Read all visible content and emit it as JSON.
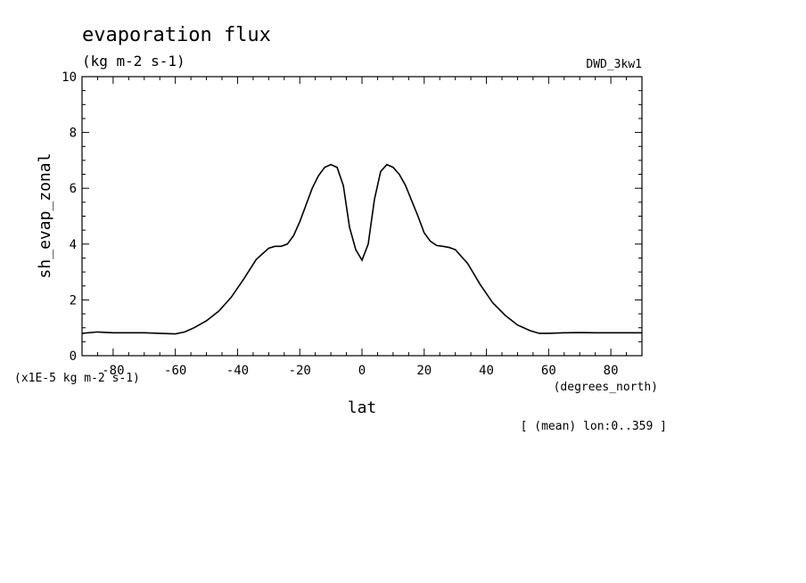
{
  "chart_data": {
    "type": "line",
    "title": "evaporation flux",
    "subtitle": "(kg m-2 s-1)",
    "dataset": "DWD_3kw1",
    "xlabel": "lat",
    "x_units": "(degrees_north)",
    "ylabel": "sh_evap_zonal",
    "y_scale_note": "(x1E-5 kg m-2 s-1)",
    "footnote": "[ (mean) lon:0..359 ]",
    "xlim": [
      -90,
      90
    ],
    "ylim": [
      0,
      10
    ],
    "x_ticks": [
      -80,
      -60,
      -40,
      -20,
      0,
      20,
      40,
      60,
      80
    ],
    "y_ticks": [
      0,
      2,
      4,
      6,
      8,
      10
    ],
    "grid": false,
    "colors": {
      "line": "#000000",
      "background": "#ffffff"
    },
    "series": [
      {
        "x": [
          -90,
          -85,
          -80,
          -75,
          -70,
          -65,
          -60,
          -57,
          -54,
          -50,
          -46,
          -42,
          -38,
          -34,
          -30,
          -28,
          -26,
          -24,
          -22,
          -20,
          -18,
          -16,
          -14,
          -12,
          -10,
          -8,
          -6,
          -4,
          -2,
          0,
          2,
          4,
          6,
          8,
          10,
          12,
          14,
          16,
          18,
          20,
          22,
          24,
          26,
          28,
          30,
          34,
          38,
          42,
          46,
          50,
          54,
          57,
          60,
          65,
          70,
          75,
          80,
          85,
          90
        ],
        "y": [
          0.8,
          0.85,
          0.82,
          0.82,
          0.82,
          0.8,
          0.78,
          0.85,
          1.0,
          1.25,
          1.6,
          2.1,
          2.75,
          3.45,
          3.85,
          3.92,
          3.92,
          4.0,
          4.3,
          4.8,
          5.4,
          6.0,
          6.45,
          6.75,
          6.85,
          6.75,
          6.1,
          4.6,
          3.8,
          3.42,
          4.0,
          5.6,
          6.6,
          6.85,
          6.75,
          6.5,
          6.1,
          5.55,
          5.0,
          4.4,
          4.1,
          3.95,
          3.92,
          3.88,
          3.8,
          3.3,
          2.55,
          1.9,
          1.45,
          1.1,
          0.9,
          0.8,
          0.8,
          0.82,
          0.83,
          0.82,
          0.82,
          0.82,
          0.82
        ]
      }
    ]
  }
}
